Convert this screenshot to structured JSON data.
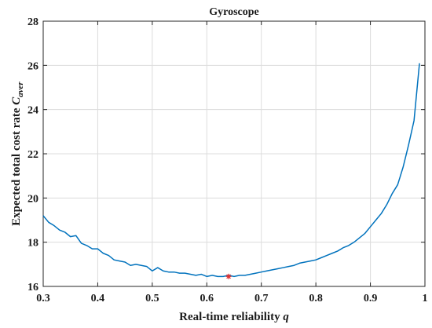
{
  "chart_data": {
    "type": "line",
    "title": "Gyroscope",
    "xlabel": {
      "main": "Real-time reliability ",
      "var": "q"
    },
    "ylabel": {
      "main": "Expected total cost rate ",
      "var": "C",
      "sub": "aver"
    },
    "xlim": [
      0.3,
      1.0
    ],
    "ylim": [
      16,
      28
    ],
    "xticks": [
      "0.3",
      "0.4",
      "0.5",
      "0.6",
      "0.7",
      "0.8",
      "0.9",
      "1"
    ],
    "yticks": [
      "16",
      "18",
      "20",
      "22",
      "24",
      "26",
      "28"
    ],
    "grid": true,
    "series": [
      {
        "color": "#0072bd",
        "x": [
          0.3,
          0.31,
          0.32,
          0.33,
          0.34,
          0.35,
          0.36,
          0.37,
          0.38,
          0.39,
          0.4,
          0.41,
          0.42,
          0.43,
          0.44,
          0.45,
          0.46,
          0.47,
          0.48,
          0.49,
          0.5,
          0.51,
          0.52,
          0.53,
          0.54,
          0.55,
          0.56,
          0.57,
          0.58,
          0.59,
          0.6,
          0.61,
          0.62,
          0.63,
          0.64,
          0.65,
          0.66,
          0.67,
          0.68,
          0.69,
          0.7,
          0.71,
          0.72,
          0.73,
          0.74,
          0.75,
          0.76,
          0.77,
          0.78,
          0.79,
          0.8,
          0.81,
          0.82,
          0.83,
          0.84,
          0.85,
          0.86,
          0.87,
          0.88,
          0.89,
          0.9,
          0.91,
          0.92,
          0.93,
          0.94,
          0.95,
          0.96,
          0.97,
          0.98,
          0.99
        ],
        "y": [
          19.2,
          18.9,
          18.75,
          18.55,
          18.45,
          18.25,
          18.3,
          17.95,
          17.85,
          17.7,
          17.7,
          17.5,
          17.4,
          17.2,
          17.15,
          17.1,
          16.95,
          17.0,
          16.95,
          16.9,
          16.7,
          16.85,
          16.7,
          16.65,
          16.65,
          16.6,
          16.6,
          16.55,
          16.5,
          16.55,
          16.45,
          16.5,
          16.45,
          16.45,
          16.5,
          16.45,
          16.5,
          16.5,
          16.55,
          16.6,
          16.65,
          16.7,
          16.75,
          16.8,
          16.85,
          16.9,
          16.95,
          17.05,
          17.1,
          17.15,
          17.2,
          17.3,
          17.4,
          17.5,
          17.6,
          17.75,
          17.85,
          18.0,
          18.2,
          18.4,
          18.7,
          19.0,
          19.3,
          19.7,
          20.2,
          20.6,
          21.4,
          22.4,
          23.5,
          26.1
        ]
      }
    ],
    "marker": {
      "x": 0.64,
      "y": 16.45,
      "color": "#e03030",
      "symbol": "*"
    }
  }
}
